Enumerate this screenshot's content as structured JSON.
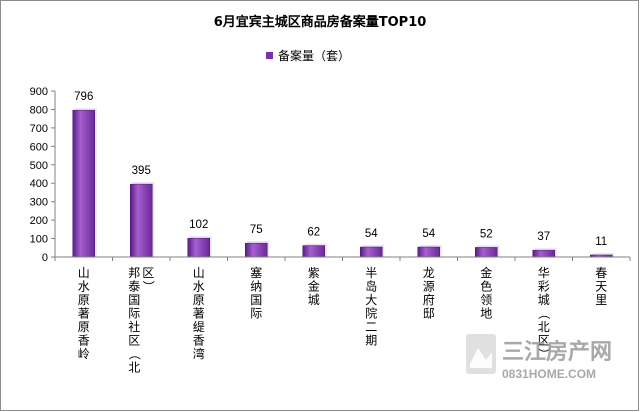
{
  "chart_data": {
    "type": "bar",
    "title": "6月宜宾主城区商品房备案量TOP10",
    "categories": [
      "山水原著原香岭",
      "邦泰国际社区（北区）",
      "山水原著缇香湾",
      "塞纳国际",
      "紫金城",
      "半岛大院二期",
      "龙源府邸",
      "金色领地",
      "华彩城（北区）",
      "春天里"
    ],
    "series": [
      {
        "name": "备案量（套）",
        "values": [
          796,
          395,
          102,
          75,
          62,
          54,
          54,
          52,
          37,
          11
        ]
      }
    ],
    "ylim": [
      0,
      900
    ],
    "yticks": [
      0,
      100,
      200,
      300,
      400,
      500,
      600,
      700,
      800,
      900
    ],
    "grid": false,
    "legend": "top-center",
    "colors": {
      "bar": "#7b2fa8",
      "bar_light": "#a860d0",
      "bar_dark": "#4a1570"
    }
  },
  "watermark": {
    "text": "三江房产网",
    "subtext": "0831HOME.COM"
  }
}
